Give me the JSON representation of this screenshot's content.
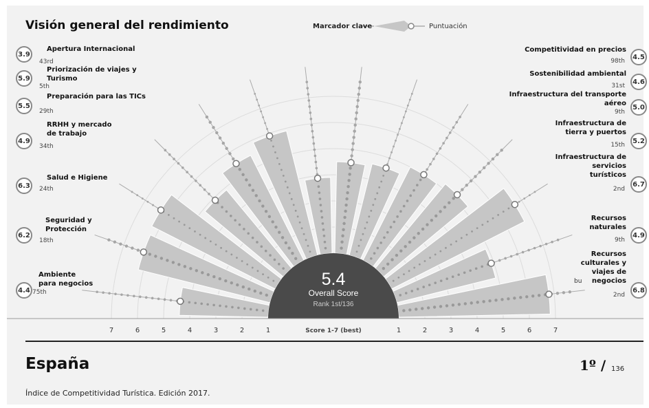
{
  "title": "Visión general del rendimiento",
  "legend": {
    "key_marker": "Marcador clave",
    "score": "Puntuación"
  },
  "center": {
    "score": "5.4",
    "label": "Overall Score",
    "rank": "Rank 1st/136"
  },
  "axis": {
    "caption": "Score 1-7 (best)",
    "left_ticks": [
      "7",
      "6",
      "5",
      "4",
      "3",
      "2",
      "1"
    ],
    "right_ticks": [
      "1",
      "2",
      "3",
      "4",
      "5",
      "6",
      "7"
    ]
  },
  "pillars": [
    {
      "name": "Ambiente para negocios",
      "lines": [
        "Ambiente",
        "para negocios"
      ],
      "score": "4.4",
      "rank": "75th"
    },
    {
      "name": "Seguridad y Protección",
      "lines": [
        "Seguridad y",
        "Protección"
      ],
      "score": "6.2",
      "rank": "18th"
    },
    {
      "name": "Salud e Higiene",
      "lines": [
        "Salud e Higiene"
      ],
      "score": "6.3",
      "rank": "24th"
    },
    {
      "name": "RRHH y mercado de trabajo",
      "lines": [
        "RRHH y mercado",
        "de trabajo"
      ],
      "score": "4.9",
      "rank": "34th"
    },
    {
      "name": "Preparación para las TICs",
      "lines": [
        "Preparación para las TICs"
      ],
      "score": "5.5",
      "rank": "29th"
    },
    {
      "name": "Priorización de viajes y Turismo",
      "lines": [
        "Priorización de viajes y",
        "Turismo"
      ],
      "score": "5.9",
      "rank": "5th"
    },
    {
      "name": "Apertura Internacional",
      "lines": [
        "Apertura Internacional"
      ],
      "score": "3.9",
      "rank": "43rd"
    },
    {
      "name": "Competitividad en precios",
      "lines": [
        "Competitividad en precios"
      ],
      "score": "4.5",
      "rank": "98th"
    },
    {
      "name": "Sostenibilidad ambiental",
      "lines": [
        "Sostenibilidad ambiental"
      ],
      "score": "4.6",
      "rank": "31st"
    },
    {
      "name": "Infraestructura del transporte aéreo",
      "lines": [
        "Infraestructura del transporte",
        "aéreo"
      ],
      "score": "5.0",
      "rank": "9th"
    },
    {
      "name": "Infraestructura de tierra y puertos",
      "lines": [
        "Infraestructura de",
        "tierra y puertos"
      ],
      "score": "5.2",
      "rank": "15th"
    },
    {
      "name": "Infraestructura de servicios turísticos",
      "lines": [
        "Infraestructura de",
        "servicios",
        "turísticos"
      ],
      "score": "6.7",
      "rank": "2nd"
    },
    {
      "name": "Recursos naturales",
      "lines": [
        "Recursos",
        "naturales"
      ],
      "score": "4.9",
      "rank": "9th"
    },
    {
      "name": "Recursos culturales y viajes de negocios",
      "lines": [
        "Recursos",
        "culturales y",
        "viajes de",
        "negocios"
      ],
      "score": "6.8",
      "rank": "2nd"
    }
  ],
  "chart_data": {
    "type": "bar",
    "layout": "radial semicircle",
    "title": "Visión general del rendimiento",
    "xlabel": "Score 1-7 (best)",
    "ylim": [
      1,
      7
    ],
    "grid": true,
    "categories": [
      "Ambiente para negocios",
      "Seguridad y Protección",
      "Salud e Higiene",
      "RRHH y mercado de trabajo",
      "Preparación para las TICs",
      "Priorización de viajes y Turismo",
      "Apertura Internacional",
      "Competitividad en precios",
      "Sostenibilidad ambiental",
      "Infraestructura del transporte aéreo",
      "Infraestructura de tierra y puertos",
      "Infraestructura de servicios turísticos",
      "Recursos naturales",
      "Recursos culturales y viajes de negocios"
    ],
    "series": [
      {
        "name": "Puntuación",
        "values": [
          4.4,
          6.2,
          6.3,
          4.9,
          5.5,
          5.9,
          3.9,
          4.5,
          4.6,
          5.0,
          5.2,
          6.7,
          4.9,
          6.8
        ]
      }
    ],
    "overall_score": 5.4,
    "overall_rank": "1st/136"
  },
  "country": "España",
  "ranking": {
    "position": "1º /",
    "total": "136"
  },
  "footer": "Índice de Competitividad Turística. Edición 2017.",
  "stray_text": "bu",
  "colors": {
    "background": "#f2f2f2",
    "bar": "#c6c6c6",
    "bar_edge": "#ffffff",
    "center": "#4a4a4a",
    "grid": "#dcdcdc",
    "bead": "#8a8a8a"
  }
}
